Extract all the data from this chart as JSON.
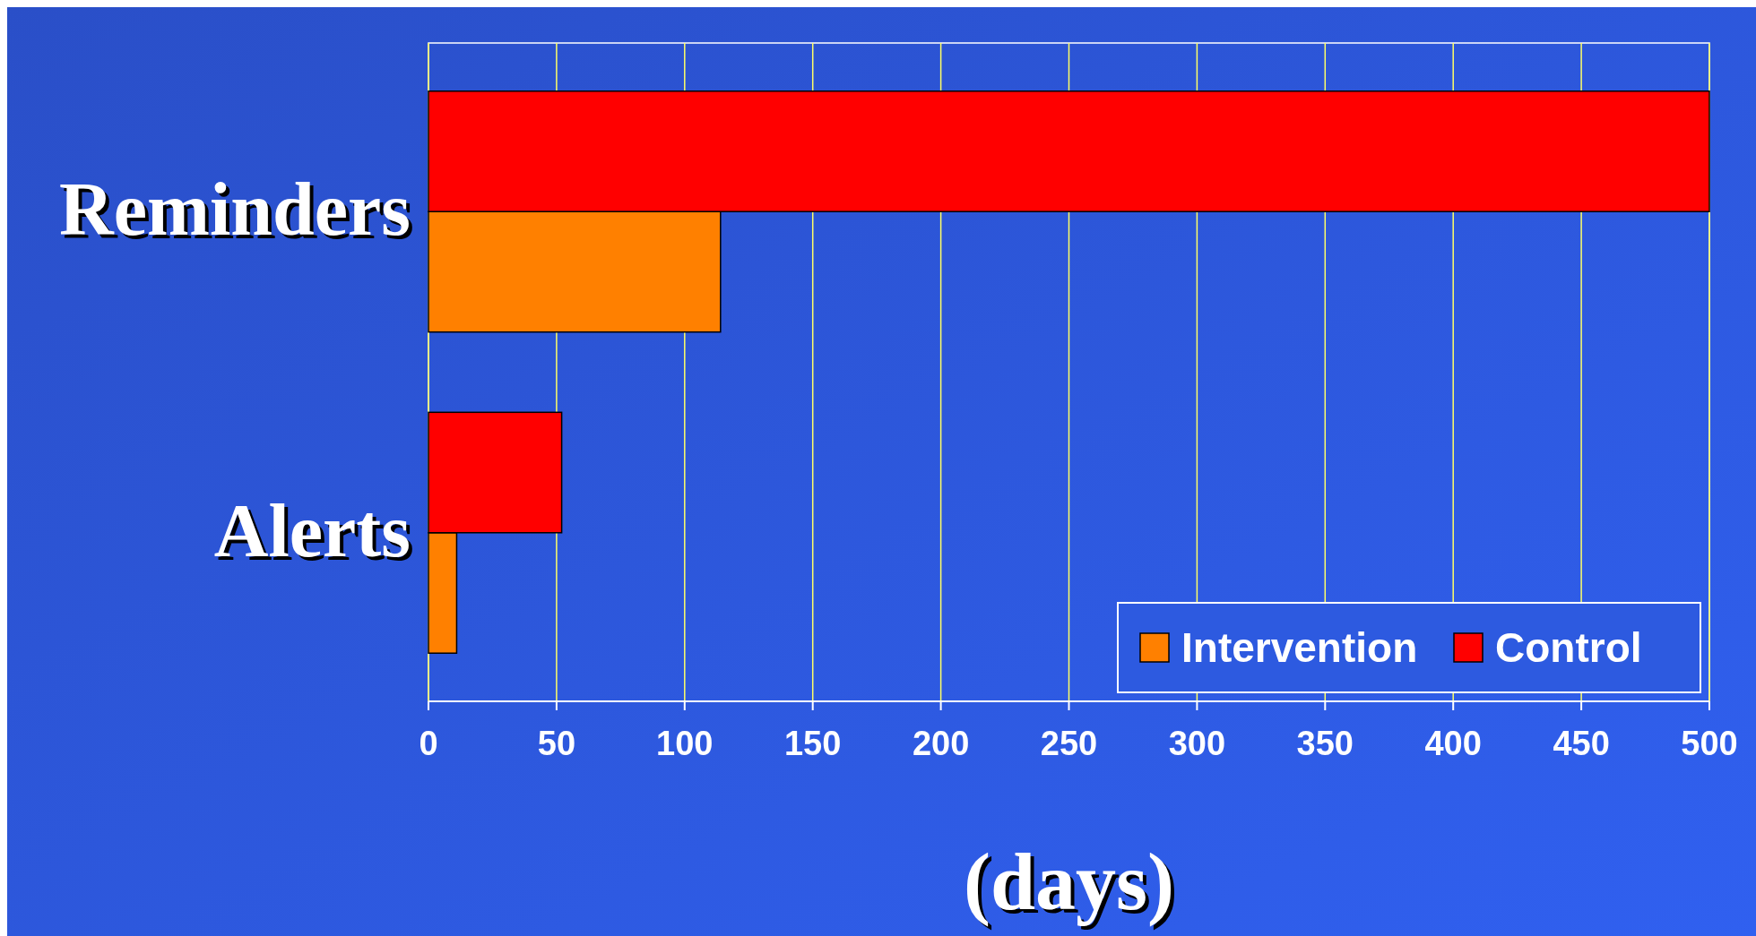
{
  "chart_data": {
    "type": "bar",
    "orientation": "horizontal",
    "xlabel": "(days)",
    "categories": [
      "Reminders",
      "Alerts"
    ],
    "series": [
      {
        "name": "Intervention",
        "color": "#ff8000",
        "values": [
          114,
          11
        ]
      },
      {
        "name": "Control",
        "color": "#ff0000",
        "values": [
          500,
          52
        ]
      }
    ],
    "xlim": [
      0,
      500
    ],
    "xticks": [
      0,
      50,
      100,
      150,
      200,
      250,
      300,
      350,
      400,
      450,
      500
    ],
    "grid": "x",
    "legend": "bottom right"
  }
}
